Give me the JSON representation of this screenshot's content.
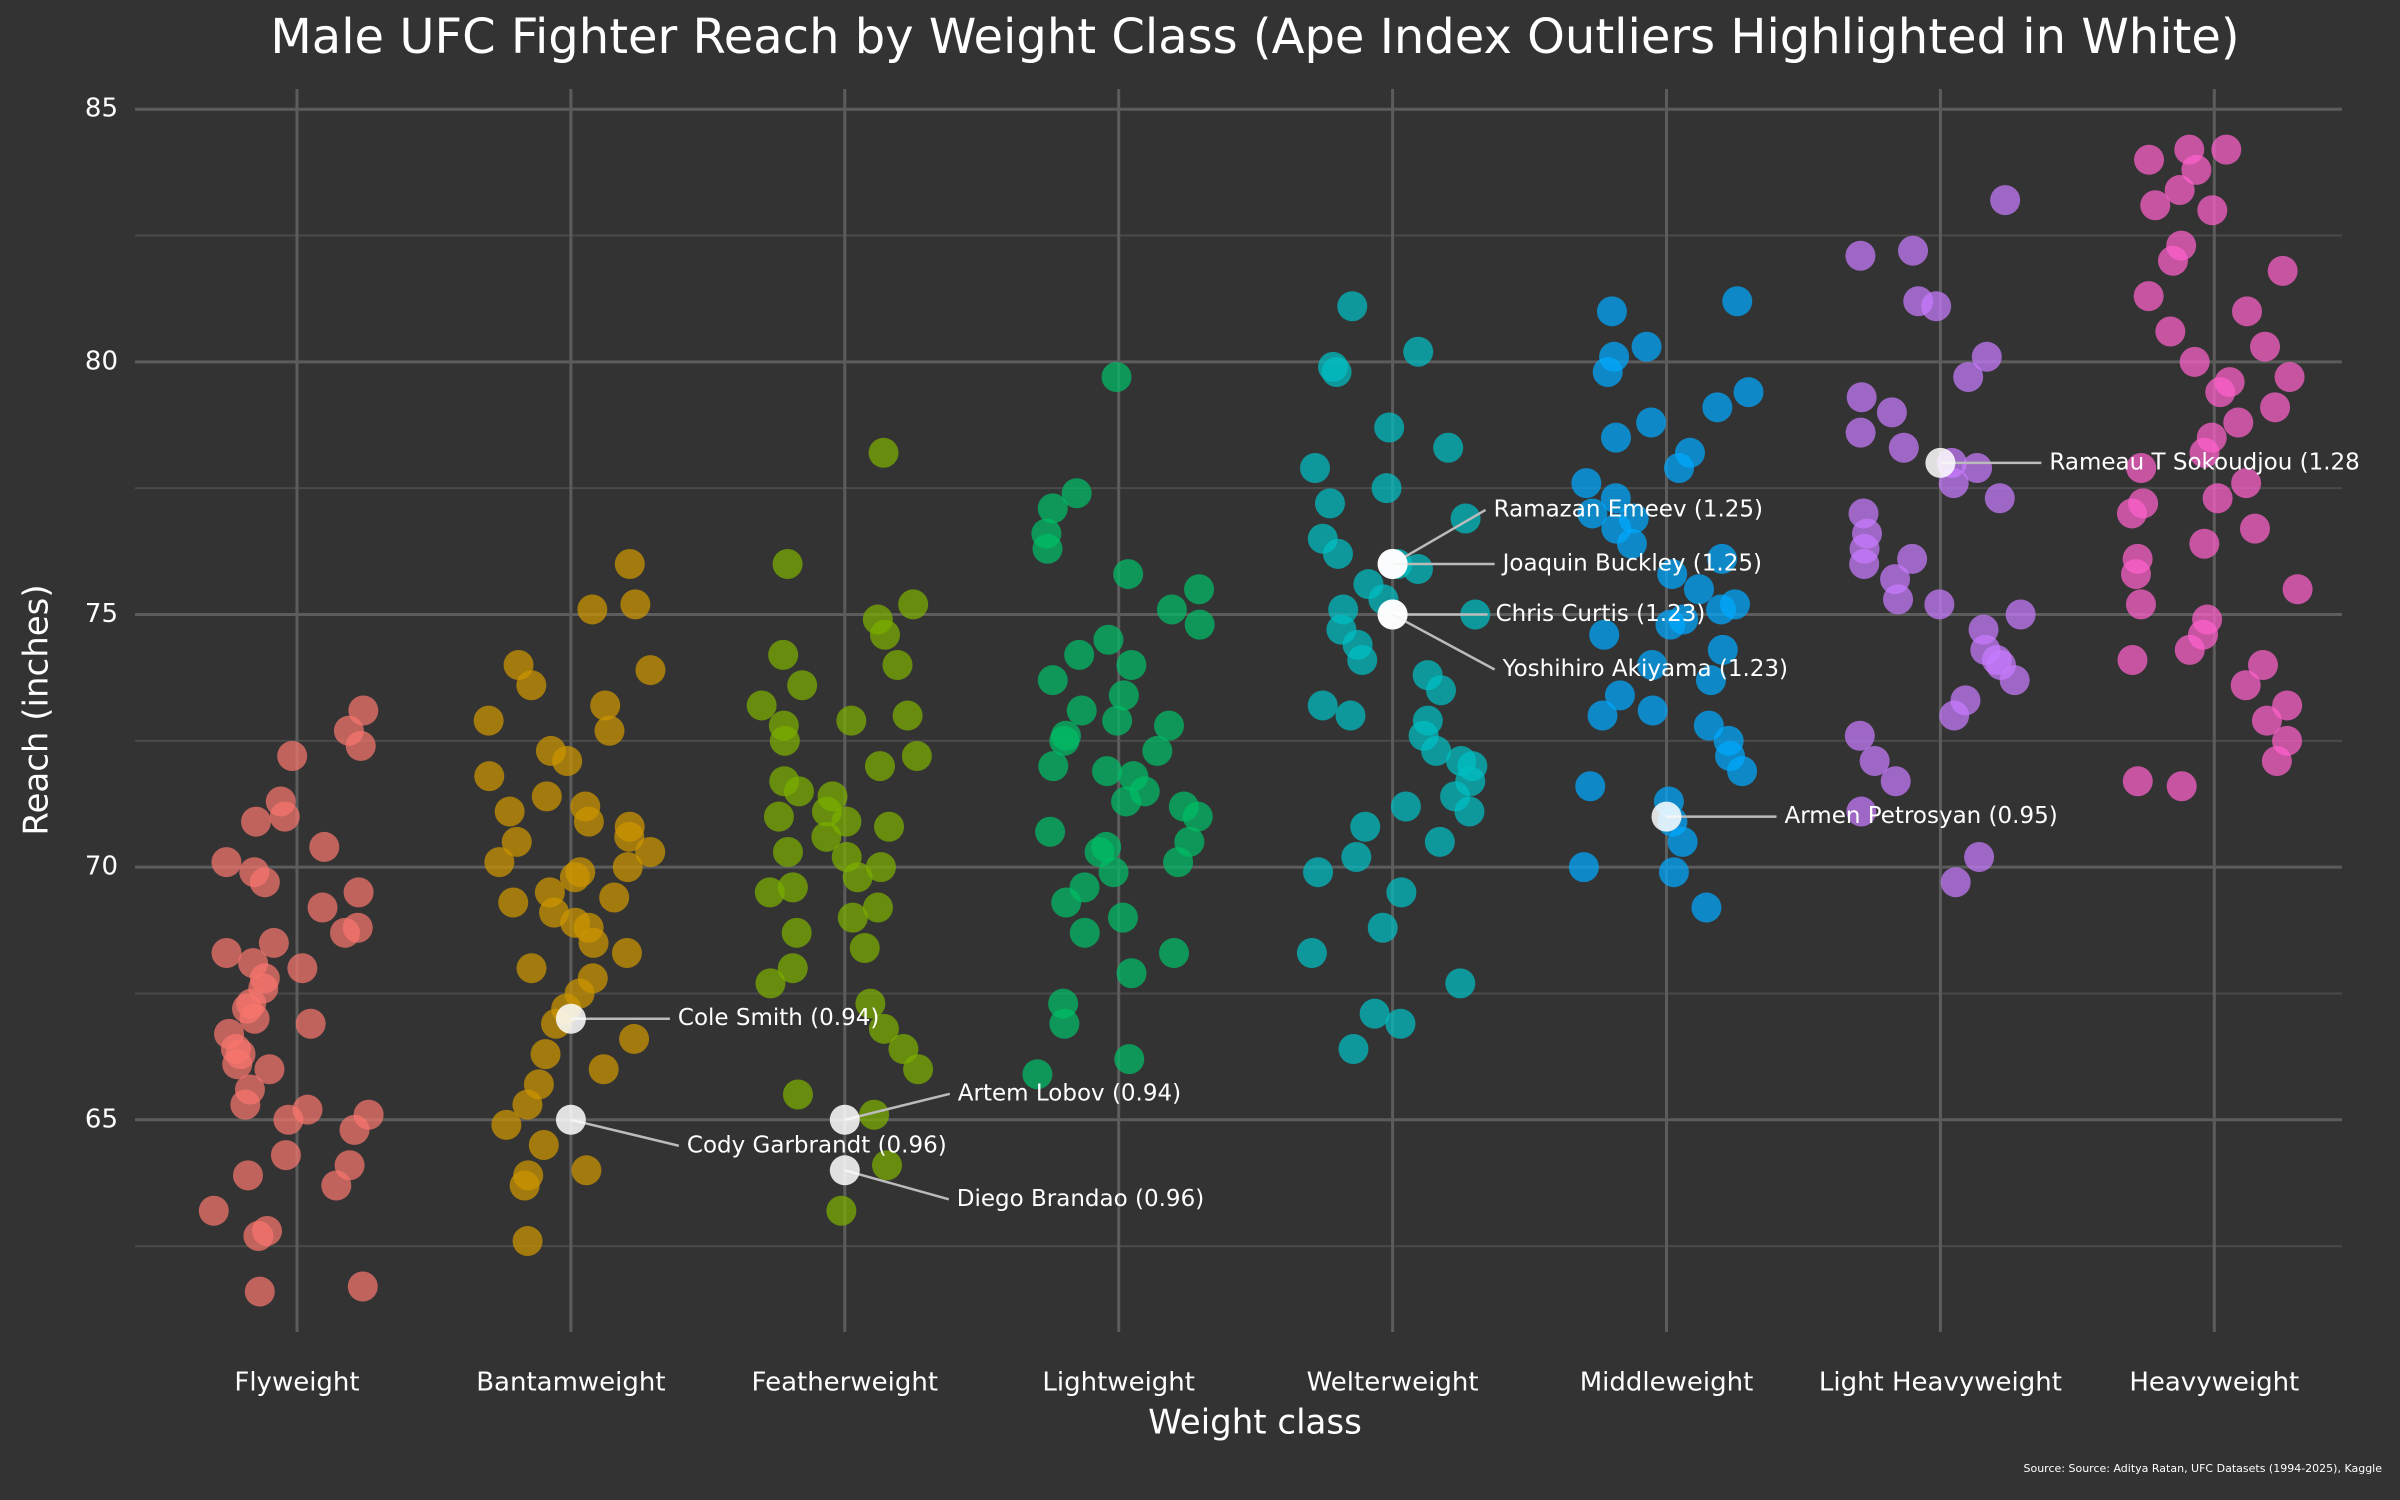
{
  "chart_data": {
    "type": "strip",
    "title": "Male UFC Fighter Reach by Weight Class (Ape Index Outliers Highlighted in White)",
    "x_label": "Weight class",
    "y_label": "Reach (inches)",
    "source": "Source: Source: Aditya Ratan, UFC Datasets (1994-2025), Kaggle",
    "categories": [
      "Flyweight",
      "Bantamweight",
      "Featherweight",
      "Lightweight",
      "Welterweight",
      "Middleweight",
      "Light Heavyweight",
      "Heavyweight"
    ],
    "ylim": [
      60.8,
      85.4
    ],
    "yticks": [
      65,
      70,
      75,
      80,
      85
    ],
    "minor_yticks": [
      62.5,
      67.5,
      72.5,
      77.5,
      82.5
    ],
    "grid": true,
    "series": [
      {
        "color": "#F8766D",
        "values": [
          72.7,
          72.4,
          71.3,
          71.0,
          73.1,
          72.2,
          70.9,
          70.4,
          70.1,
          69.7,
          69.5,
          69.2,
          68.8,
          68.5,
          68.3,
          68.1,
          68.0,
          67.8,
          67.6,
          67.3,
          67.0,
          66.9,
          66.7,
          66.4,
          66.1,
          66.0,
          65.6,
          65.3,
          65.1,
          65.0,
          64.8,
          64.3,
          64.1,
          63.9,
          63.7,
          63.2,
          62.8,
          62.7,
          61.6,
          61.7,
          69.9,
          68.7,
          67.2,
          66.3,
          65.2
        ]
      },
      {
        "color": "#CD9600",
        "values": [
          76.0,
          75.2,
          75.1,
          74.0,
          73.9,
          73.6,
          73.2,
          72.9,
          72.7,
          72.3,
          72.1,
          71.8,
          71.4,
          71.1,
          70.9,
          70.6,
          70.3,
          70.1,
          70.0,
          69.8,
          69.5,
          69.3,
          69.1,
          68.8,
          68.5,
          68.3,
          68.0,
          67.8,
          67.5,
          67.2,
          66.9,
          66.6,
          66.3,
          66.0,
          65.7,
          65.3,
          64.9,
          64.5,
          64.0,
          63.7,
          63.9,
          62.6,
          70.5,
          69.9,
          68.9,
          71.2,
          70.8,
          69.4
        ]
      },
      {
        "color": "#7CAE00",
        "values": [
          78.2,
          76.0,
          75.2,
          74.9,
          74.6,
          74.2,
          74.0,
          73.6,
          73.2,
          73.0,
          72.8,
          72.5,
          72.2,
          72.0,
          71.7,
          71.4,
          71.1,
          70.9,
          70.6,
          70.3,
          70.0,
          69.8,
          69.5,
          69.2,
          69.0,
          68.7,
          68.4,
          68.0,
          67.7,
          67.3,
          66.8,
          66.4,
          66.0,
          65.5,
          65.1,
          64.1,
          63.2,
          70.8,
          71.5,
          70.2,
          69.6,
          72.9,
          71.0
        ]
      },
      {
        "color": "#00BE67",
        "values": [
          79.7,
          77.4,
          77.1,
          76.6,
          76.3,
          75.8,
          75.5,
          75.1,
          74.8,
          74.5,
          74.2,
          74.0,
          73.7,
          73.4,
          73.1,
          72.9,
          72.6,
          72.3,
          72.0,
          71.8,
          71.5,
          71.2,
          71.0,
          70.7,
          70.4,
          70.1,
          69.9,
          69.6,
          69.3,
          69.0,
          68.7,
          68.3,
          67.9,
          67.3,
          66.9,
          66.2,
          65.9,
          71.3,
          72.5,
          70.5,
          71.9,
          70.3,
          72.8
        ]
      },
      {
        "color": "#00BFC4",
        "values": [
          81.1,
          80.2,
          79.9,
          79.8,
          78.7,
          78.3,
          77.9,
          77.5,
          77.2,
          76.9,
          76.5,
          76.2,
          75.9,
          75.6,
          75.3,
          75.0,
          74.7,
          74.4,
          74.1,
          73.8,
          73.5,
          73.2,
          72.9,
          72.6,
          72.3,
          72.0,
          71.7,
          71.4,
          71.1,
          70.8,
          70.5,
          70.2,
          69.9,
          69.5,
          68.8,
          68.3,
          67.7,
          67.1,
          66.9,
          66.4,
          73.0,
          72.1,
          75.1,
          76.0,
          71.2
        ]
      },
      {
        "color": "#00A9FF",
        "values": [
          81.2,
          81.0,
          80.3,
          80.1,
          79.8,
          79.4,
          79.1,
          78.8,
          78.5,
          78.2,
          77.9,
          77.6,
          77.3,
          77.0,
          76.7,
          76.4,
          76.1,
          75.8,
          75.5,
          75.2,
          74.9,
          74.6,
          74.3,
          74.0,
          73.7,
          73.4,
          73.1,
          72.8,
          72.5,
          72.2,
          71.9,
          71.6,
          71.3,
          70.9,
          70.5,
          70.0,
          69.9,
          69.2,
          74.8,
          75.1,
          73.0,
          76.9
        ]
      },
      {
        "color": "#C77CFF",
        "values": [
          83.2,
          82.2,
          82.1,
          81.2,
          81.1,
          80.1,
          79.7,
          79.3,
          79.0,
          78.6,
          78.3,
          78.0,
          77.6,
          77.3,
          77.0,
          76.6,
          76.3,
          76.0,
          75.7,
          75.3,
          75.0,
          74.7,
          74.3,
          74.0,
          73.7,
          73.3,
          73.0,
          72.6,
          72.1,
          71.7,
          71.1,
          70.2,
          69.7,
          76.1,
          75.2,
          74.1,
          77.9
        ]
      },
      {
        "color": "#FF61CC",
        "values": [
          84.2,
          84.2,
          84.0,
          83.8,
          83.4,
          83.1,
          83.0,
          82.3,
          82.0,
          81.8,
          81.3,
          81.0,
          80.6,
          80.3,
          80.0,
          79.7,
          79.4,
          79.1,
          78.8,
          78.5,
          78.2,
          77.9,
          77.6,
          77.3,
          77.0,
          76.7,
          76.4,
          76.1,
          75.8,
          75.5,
          75.2,
          74.9,
          74.6,
          74.3,
          74.0,
          73.6,
          73.2,
          72.9,
          72.5,
          72.1,
          71.7,
          71.6,
          77.2,
          79.6,
          74.1
        ]
      }
    ],
    "outlier_color": "#ffffff",
    "annotations": [
      {
        "category": "Bantamweight",
        "value": 67,
        "label": "Cole Smith (0.94)"
      },
      {
        "category": "Bantamweight",
        "value": 65,
        "label": "Cody Garbrandt (0.96)"
      },
      {
        "category": "Featherweight",
        "value": 65,
        "label": "Artem Lobov (0.94)"
      },
      {
        "category": "Featherweight",
        "value": 64,
        "label": "Diego Brandao (0.96)"
      },
      {
        "category": "Welterweight",
        "value": 76,
        "label": "Ramazan Emeev (1.25)"
      },
      {
        "category": "Welterweight",
        "value": 76,
        "label": "Joaquin Buckley (1.25)"
      },
      {
        "category": "Welterweight",
        "value": 75,
        "label": "Chris Curtis (1.23)"
      },
      {
        "category": "Welterweight",
        "value": 75,
        "label": "Yoshihiro Akiyama (1.23)"
      },
      {
        "category": "Middleweight",
        "value": 71,
        "label": "Armen Petrosyan (0.95)"
      },
      {
        "category": "Light Heavyweight",
        "value": 78,
        "label": "Rameau T Sokoudjou (1.28"
      }
    ]
  }
}
